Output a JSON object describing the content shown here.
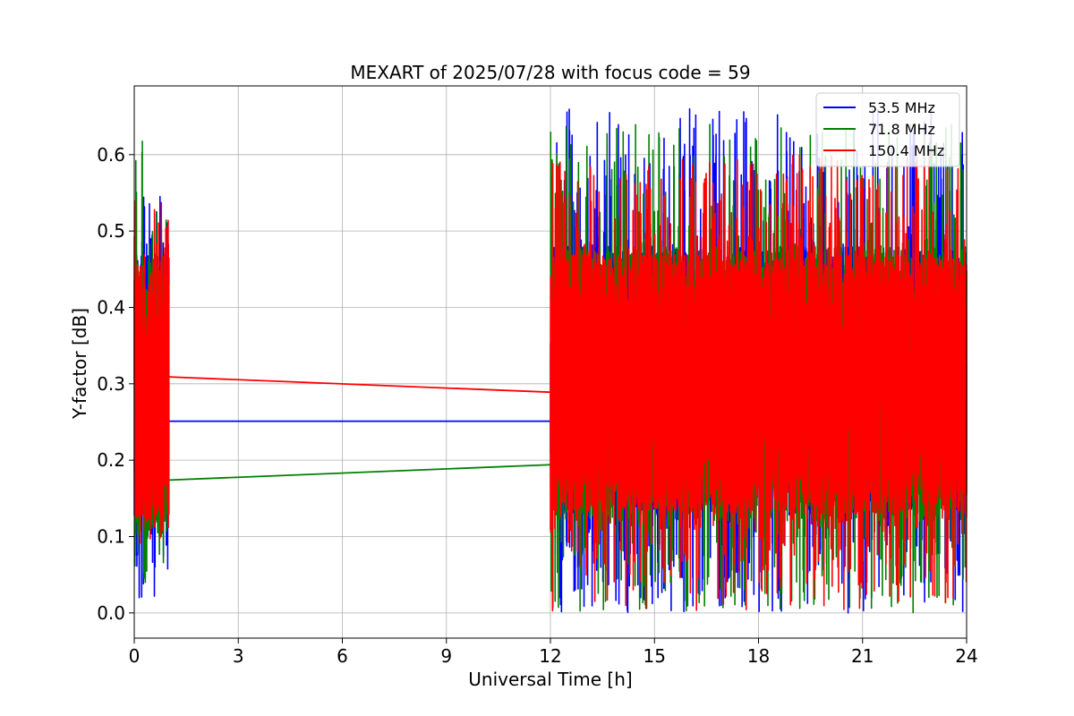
{
  "chart_data": {
    "type": "line",
    "title": "MEXART of 2025/07/28 with focus code = 59",
    "xlabel": "Universal Time [h]",
    "ylabel": "Y-factor [dB]",
    "xlim": [
      0,
      24
    ],
    "ylim": [
      -0.033,
      0.69
    ],
    "x_ticks": [
      0,
      3,
      6,
      9,
      12,
      15,
      18,
      21,
      24
    ],
    "y_ticks": [
      0.0,
      0.1,
      0.2,
      0.3,
      0.4,
      0.5,
      0.6
    ],
    "grid": true,
    "legend_position": "top-right",
    "series": [
      {
        "name": "53.5 MHz",
        "color": "#0000ff",
        "gap_line": {
          "x": [
            1.0,
            12.0
          ],
          "y": [
            0.251,
            0.251
          ]
        },
        "segments": [
          {
            "x_range": [
              0.0,
              1.0
            ],
            "band": [
              0.1,
              0.47
            ],
            "min": 0.02,
            "max": 0.58
          },
          {
            "x_range": [
              12.0,
              24.0
            ],
            "band": [
              0.13,
              0.48
            ],
            "min": 0.0,
            "max": 0.66
          }
        ]
      },
      {
        "name": "71.8 MHz",
        "color": "#008000",
        "gap_line": {
          "x": [
            1.0,
            12.0
          ],
          "y": [
            0.174,
            0.194
          ]
        },
        "segments": [
          {
            "x_range": [
              0.0,
              1.0
            ],
            "band": [
              0.1,
              0.47
            ],
            "min": 0.04,
            "max": 0.62
          },
          {
            "x_range": [
              12.0,
              24.0
            ],
            "band": [
              0.12,
              0.48
            ],
            "min": 0.0,
            "max": 0.64
          }
        ]
      },
      {
        "name": "150.4 MHz",
        "color": "#ff0000",
        "gap_line": {
          "x": [
            1.0,
            12.0
          ],
          "y": [
            0.309,
            0.289
          ]
        },
        "segments": [
          {
            "x_range": [
              0.0,
              1.0
            ],
            "band": [
              0.12,
              0.46
            ],
            "min": 0.08,
            "max": 0.54
          },
          {
            "x_range": [
              12.0,
              24.0
            ],
            "band": [
              0.13,
              0.47
            ],
            "min": 0.0,
            "max": 0.6
          }
        ]
      }
    ]
  }
}
